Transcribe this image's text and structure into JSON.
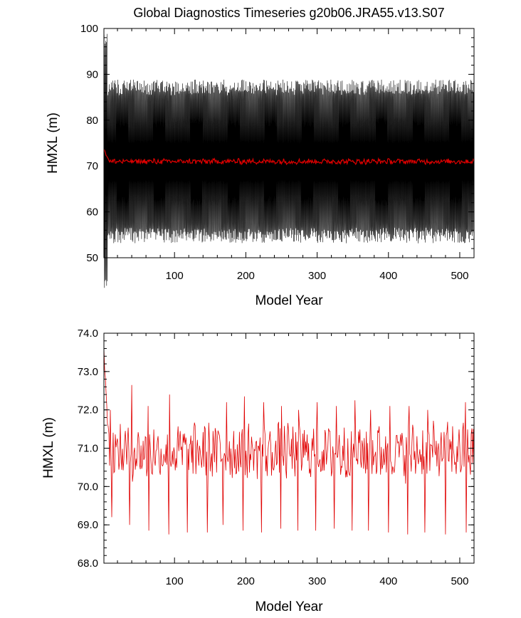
{
  "title": "Global Diagnostics Timeseries g20b06.JRA55.v13.S07",
  "chart_data": [
    {
      "type": "line",
      "panel": "top",
      "xlabel": "Model Year",
      "ylabel": "HMXL (m)",
      "xlim": [
        1,
        520
      ],
      "ylim": [
        50,
        100
      ],
      "xticks": [
        100,
        200,
        300,
        400,
        500
      ],
      "xtick_labels": [
        "100",
        "200",
        "300",
        "400",
        "500"
      ],
      "yticks": [
        50,
        60,
        70,
        80,
        90,
        100
      ],
      "ytick_labels": [
        "50",
        "60",
        "70",
        "80",
        "90",
        "100"
      ],
      "grid": false,
      "series": [
        {
          "color": "#000000",
          "kind": "monthly",
          "x_range": [
            1,
            520
          ],
          "typical_min": 56,
          "typical_max": 90,
          "initial_peak": 99,
          "mean": 71
        },
        {
          "color": "#e00000",
          "kind": "annual-mean",
          "x_range": [
            1,
            520
          ],
          "mean": 71.0,
          "initial": 73.5
        }
      ]
    },
    {
      "type": "line",
      "panel": "bottom",
      "xlabel": "Model Year",
      "ylabel": "HMXL (m)",
      "xlim": [
        1,
        520
      ],
      "ylim": [
        68.0,
        74.0
      ],
      "xticks": [
        100,
        200,
        300,
        400,
        500
      ],
      "xtick_labels": [
        "100",
        "200",
        "300",
        "400",
        "500"
      ],
      "yticks": [
        68.0,
        69.0,
        70.0,
        71.0,
        72.0,
        73.0,
        74.0
      ],
      "ytick_labels": [
        "68.0",
        "69.0",
        "70.0",
        "71.0",
        "72.0",
        "73.0",
        "74.0"
      ],
      "grid": false,
      "series": [
        {
          "color": "#e00000",
          "kind": "annual-mean",
          "x_range": [
            1,
            520
          ],
          "mean": 70.9,
          "initial": 73.5,
          "typical_min": 70.2,
          "typical_max": 71.8,
          "dips": [
            [
              12,
              69.2
            ],
            [
              37,
              69.0
            ],
            [
              64,
              68.85
            ],
            [
              92,
              68.75
            ],
            [
              118,
              68.8
            ],
            [
              146,
              68.8
            ],
            [
              168,
              69.0
            ],
            [
              196,
              68.85
            ],
            [
              222,
              68.8
            ],
            [
              249,
              68.9
            ],
            [
              273,
              68.85
            ],
            [
              298,
              68.85
            ],
            [
              324,
              68.9
            ],
            [
              349,
              68.85
            ],
            [
              372,
              68.85
            ],
            [
              400,
              68.8
            ],
            [
              427,
              68.75
            ],
            [
              451,
              68.8
            ],
            [
              480,
              68.75
            ],
            [
              509,
              68.8
            ]
          ],
          "peaks": [
            [
              10,
              72.0
            ],
            [
              40,
              72.65
            ],
            [
              63,
              72.1
            ],
            [
              93,
              72.4
            ],
            [
              118,
              72.1
            ],
            [
              146,
              72.35
            ],
            [
              173,
              72.2
            ],
            [
              198,
              72.35
            ],
            [
              225,
              72.2
            ],
            [
              250,
              72.1
            ],
            [
              274,
              72.0
            ],
            [
              300,
              72.2
            ],
            [
              327,
              72.1
            ],
            [
              353,
              72.25
            ],
            [
              375,
              72.0
            ],
            [
              402,
              72.1
            ],
            [
              429,
              72.1
            ],
            [
              455,
              72.0
            ],
            [
              480,
              71.8
            ],
            [
              508,
              72.2
            ]
          ]
        }
      ]
    }
  ]
}
